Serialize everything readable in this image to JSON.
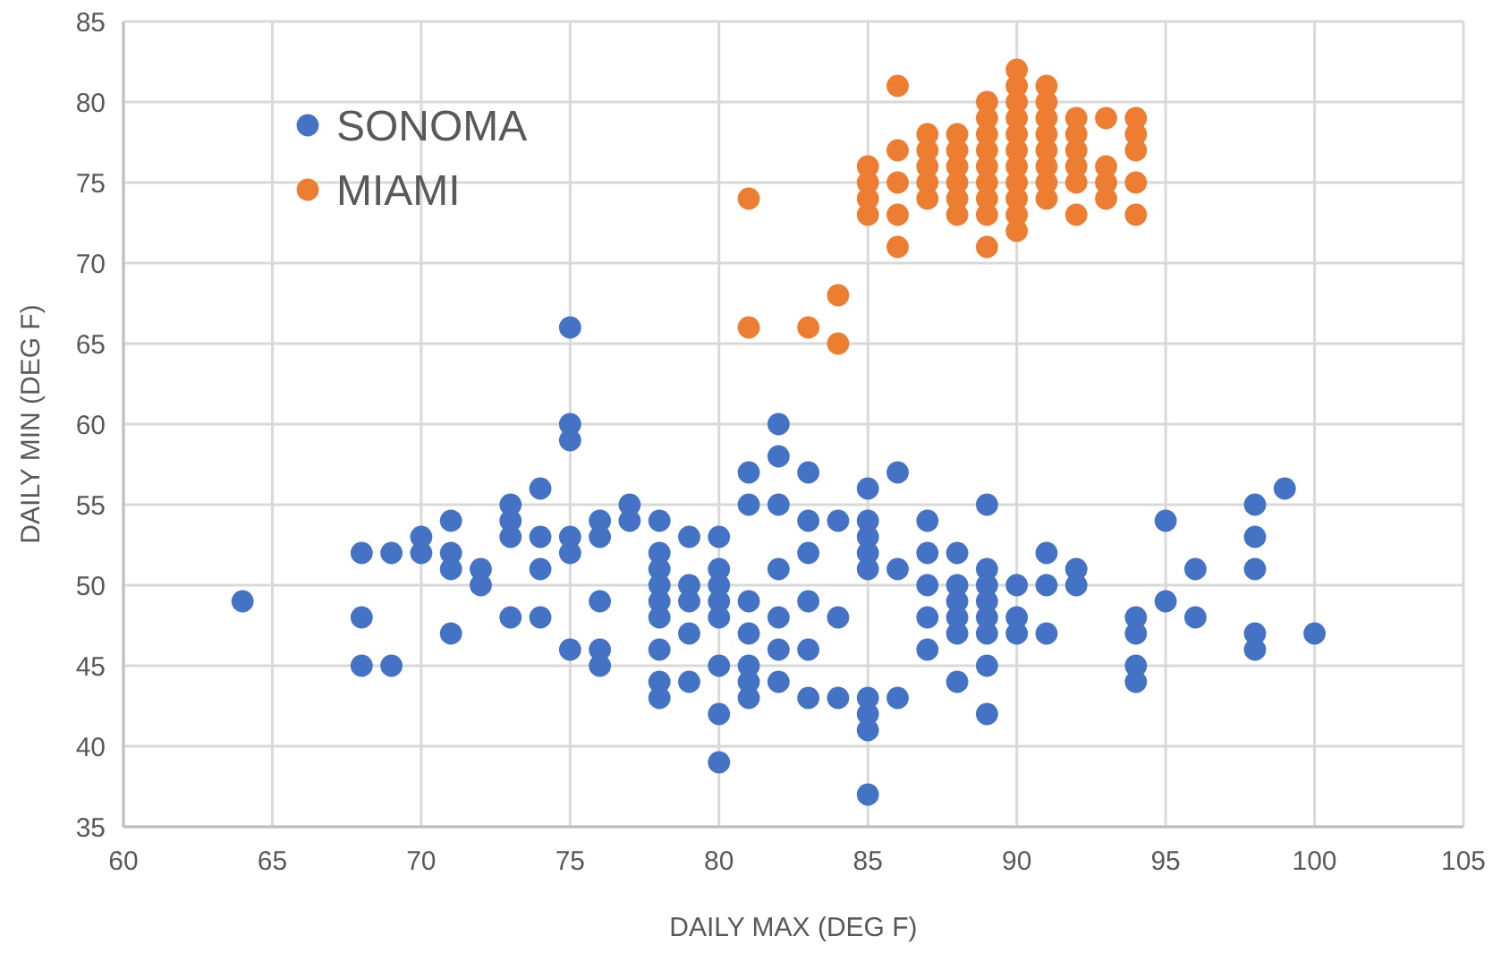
{
  "chart_data": {
    "type": "scatter",
    "xlabel": "DAILY MAX (DEG F)",
    "ylabel": "DAILY MIN (DEG F)",
    "xlim": [
      60,
      105
    ],
    "xticks": [
      60,
      65,
      70,
      75,
      80,
      85,
      90,
      95,
      100,
      105
    ],
    "ylim": [
      35,
      85
    ],
    "yticks": [
      35,
      40,
      45,
      50,
      55,
      60,
      65,
      70,
      75,
      80,
      85
    ],
    "grid": true,
    "legend": "top left",
    "marker": "circle",
    "series": [
      {
        "name": "SONOMA",
        "color": "#4472c4",
        "x": [
          64,
          68,
          68,
          68,
          69,
          69,
          70,
          70,
          71,
          71,
          71,
          71,
          72,
          72,
          73,
          73,
          73,
          73,
          74,
          74,
          74,
          74,
          75,
          75,
          75,
          75,
          75,
          75,
          76,
          76,
          76,
          76,
          76,
          77,
          77,
          78,
          78,
          78,
          78,
          78,
          78,
          78,
          78,
          78,
          79,
          79,
          79,
          79,
          79,
          80,
          80,
          80,
          80,
          80,
          80,
          80,
          80,
          81,
          81,
          81,
          81,
          81,
          81,
          81,
          82,
          82,
          82,
          82,
          82,
          82,
          82,
          83,
          83,
          83,
          83,
          83,
          83,
          84,
          84,
          84,
          85,
          85,
          85,
          85,
          85,
          85,
          85,
          85,
          85,
          86,
          86,
          86,
          87,
          87,
          87,
          87,
          87,
          88,
          88,
          88,
          88,
          88,
          88,
          89,
          89,
          89,
          89,
          89,
          89,
          89,
          89,
          90,
          90,
          90,
          91,
          91,
          91,
          92,
          92,
          94,
          94,
          94,
          94,
          95,
          95,
          96,
          96,
          98,
          98,
          98,
          98,
          98,
          99,
          100
        ],
        "values": [
          49,
          52,
          48,
          45,
          52,
          45,
          53,
          52,
          54,
          52,
          51,
          47,
          51,
          50,
          55,
          54,
          53,
          48,
          56,
          53,
          51,
          48,
          66,
          60,
          59,
          53,
          52,
          46,
          54,
          53,
          49,
          46,
          45,
          55,
          54,
          54,
          52,
          51,
          50,
          49,
          48,
          46,
          44,
          43,
          53,
          50,
          49,
          47,
          44,
          53,
          51,
          50,
          49,
          48,
          45,
          42,
          39,
          57,
          55,
          49,
          47,
          45,
          44,
          43,
          60,
          58,
          55,
          51,
          48,
          46,
          44,
          57,
          54,
          52,
          49,
          46,
          43,
          54,
          48,
          43,
          56,
          54,
          53,
          52,
          51,
          43,
          42,
          41,
          37,
          57,
          51,
          43,
          54,
          52,
          50,
          48,
          46,
          52,
          50,
          49,
          48,
          47,
          44,
          55,
          51,
          50,
          49,
          48,
          47,
          45,
          42,
          50,
          48,
          47,
          52,
          50,
          47,
          51,
          50,
          48,
          47,
          45,
          44,
          54,
          49,
          51,
          48,
          55,
          53,
          51,
          47,
          46,
          56,
          47
        ]
      },
      {
        "name": "MIAMI",
        "color": "#ed7d31",
        "x": [
          81,
          81,
          83,
          84,
          84,
          85,
          85,
          85,
          85,
          86,
          86,
          86,
          86,
          86,
          87,
          87,
          87,
          87,
          87,
          88,
          88,
          88,
          88,
          88,
          88,
          89,
          89,
          89,
          89,
          89,
          89,
          89,
          89,
          89,
          90,
          90,
          90,
          90,
          90,
          90,
          90,
          90,
          90,
          90,
          90,
          91,
          91,
          91,
          91,
          91,
          91,
          91,
          91,
          92,
          92,
          92,
          92,
          92,
          92,
          93,
          93,
          93,
          93,
          94,
          94,
          94,
          94,
          94
        ],
        "values": [
          74,
          66,
          66,
          68,
          65,
          76,
          75,
          74,
          73,
          81,
          77,
          75,
          73,
          71,
          78,
          77,
          76,
          75,
          74,
          78,
          77,
          76,
          75,
          74,
          73,
          80,
          79,
          78,
          77,
          76,
          75,
          74,
          73,
          71,
          82,
          81,
          80,
          79,
          78,
          77,
          76,
          75,
          74,
          73,
          72,
          81,
          80,
          79,
          78,
          77,
          76,
          75,
          74,
          79,
          78,
          77,
          76,
          75,
          73,
          79,
          76,
          75,
          74,
          79,
          78,
          77,
          75,
          73
        ]
      }
    ]
  }
}
